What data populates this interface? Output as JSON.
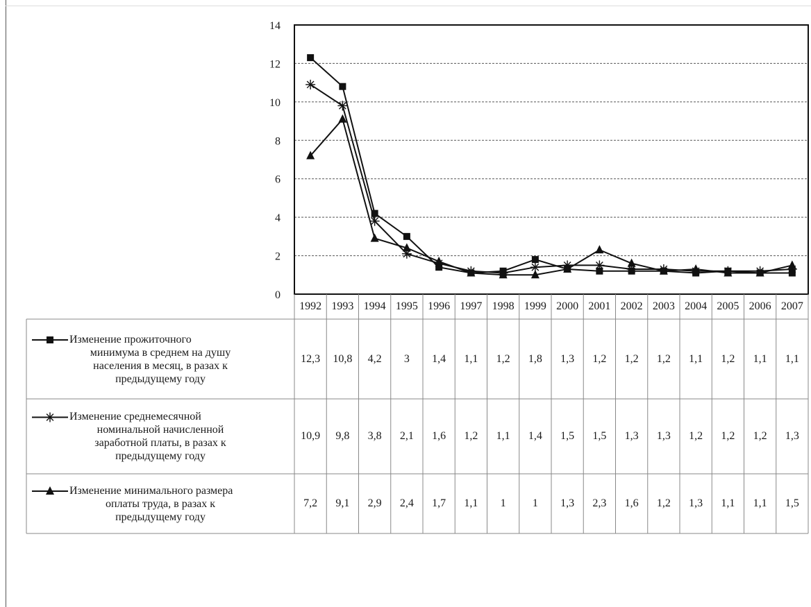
{
  "chart_data": {
    "type": "line",
    "title": "",
    "xlabel": "",
    "ylabel": "",
    "ylim": [
      0,
      14
    ],
    "yticks": [
      "0",
      "2",
      "4",
      "6",
      "8",
      "10",
      "12",
      "14"
    ],
    "grid": true,
    "legend": "table-below",
    "x": [
      "1992",
      "1993",
      "1994",
      "1995",
      "1996",
      "1997",
      "1998",
      "1999",
      "2000",
      "2001",
      "2002",
      "2003",
      "2004",
      "2005",
      "2006",
      "2007"
    ],
    "series": [
      {
        "name": "Изменение прожиточного минимума в среднем на душу населения в месяц, в разах к предыдущему году",
        "name_lines": [
          "Изменение прожиточного",
          "минимума в среднем на душу",
          "населения в месяц, в разах к",
          "предыдущему году"
        ],
        "marker": "square",
        "values": [
          12.3,
          10.8,
          4.2,
          3,
          1.4,
          1.1,
          1.2,
          1.8,
          1.3,
          1.2,
          1.2,
          1.2,
          1.1,
          1.2,
          1.1,
          1.1
        ],
        "labels": [
          "12,3",
          "10,8",
          "4,2",
          "3",
          "1,4",
          "1,1",
          "1,2",
          "1,8",
          "1,3",
          "1,2",
          "1,2",
          "1,2",
          "1,1",
          "1,2",
          "1,1",
          "1,1"
        ]
      },
      {
        "name": "Изменение среднемесячной номинальной начисленной заработной платы, в разах к предыдущему году",
        "name_lines": [
          "Изменение среднемесячной",
          "номинальной начисленной",
          "заработной платы, в разах к",
          "предыдущему году"
        ],
        "marker": "asterisk",
        "values": [
          10.9,
          9.8,
          3.8,
          2.1,
          1.6,
          1.2,
          1.1,
          1.4,
          1.5,
          1.5,
          1.3,
          1.3,
          1.2,
          1.2,
          1.2,
          1.3
        ],
        "labels": [
          "10,9",
          "9,8",
          "3,8",
          "2,1",
          "1,6",
          "1,2",
          "1,1",
          "1,4",
          "1,5",
          "1,5",
          "1,3",
          "1,3",
          "1,2",
          "1,2",
          "1,2",
          "1,3"
        ]
      },
      {
        "name": "Изменение минимального размера оплаты труда, в разах к предыдущему году",
        "name_lines": [
          "Изменение минимального размера",
          "оплаты труда, в разах к",
          "предыдущему году"
        ],
        "marker": "triangle",
        "values": [
          7.2,
          9.1,
          2.9,
          2.4,
          1.7,
          1.1,
          1,
          1,
          1.3,
          2.3,
          1.6,
          1.2,
          1.3,
          1.1,
          1.1,
          1.5
        ],
        "labels": [
          "7,2",
          "9,1",
          "2,9",
          "2,4",
          "1,7",
          "1,1",
          "1",
          "1",
          "1,3",
          "2,3",
          "1,6",
          "1,2",
          "1,3",
          "1,1",
          "1,1",
          "1,5"
        ]
      }
    ],
    "colors": {
      "line": "#111111",
      "grid": "#555555",
      "table_border": "#888888"
    }
  }
}
